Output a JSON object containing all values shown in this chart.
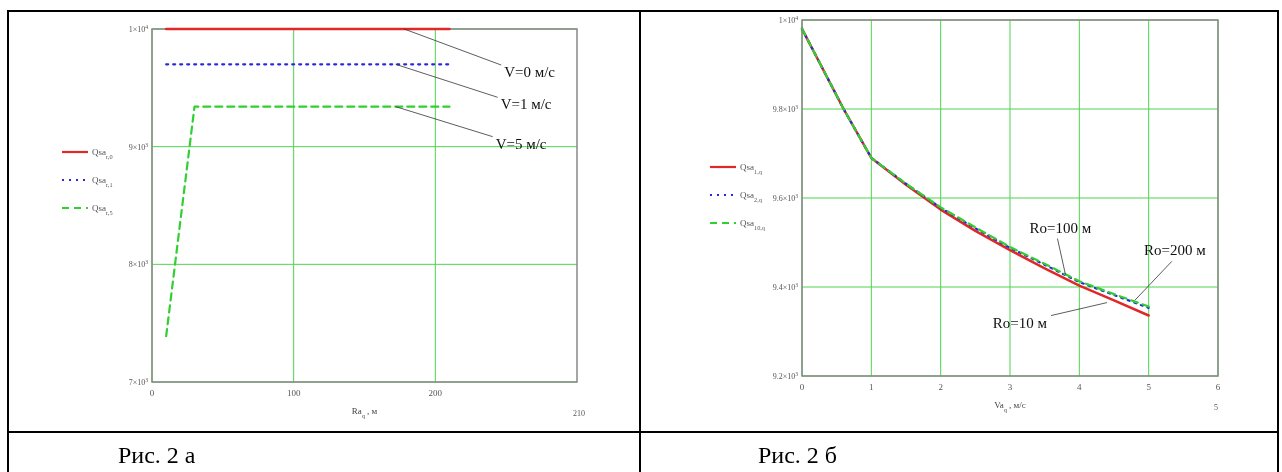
{
  "chart_data": [
    {
      "type": "line",
      "xlabel": "Ra$_{q}$ , м",
      "xlim": [
        0,
        300
      ],
      "xticks": [
        0,
        100,
        200
      ],
      "ylim": [
        7000,
        10000
      ],
      "yticks": [
        {
          "value": 7000,
          "label": "7×10$^{3}$"
        },
        {
          "value": 8000,
          "label": "8×10$^{3}$"
        },
        {
          "value": 9000,
          "label": "9×10$^{3}$"
        },
        {
          "value": 10000,
          "label": "1×10$^{4}$"
        }
      ],
      "grid": true,
      "legend": "left",
      "series": [
        {
          "name": "Qsa$_{r,0}$",
          "color": "#e02828",
          "line_style": "solid",
          "x": [
            10,
            210
          ],
          "values": [
            10000,
            10000
          ]
        },
        {
          "name": "Qsa$_{r,1}$",
          "color": "#2828e0",
          "line_style": "dotted",
          "x": [
            10,
            210
          ],
          "values": [
            9700,
            9700
          ]
        },
        {
          "name": "Qsa$_{r,5}$",
          "color": "#30d030",
          "line_style": "dashed",
          "x": [
            10,
            30,
            210
          ],
          "values": [
            7390,
            9340,
            9340
          ]
        }
      ],
      "annotations": [
        {
          "text": "V=0 м/с",
          "x": 178,
          "y": 10000
        },
        {
          "text": "V=1 м/с",
          "x": 172,
          "y": 9700
        },
        {
          "text": "V=5 м/с",
          "x": 172,
          "y": 9340
        },
        "210",
        "Рис. 2 а"
      ]
    },
    {
      "type": "line",
      "xlabel": "Va$_{q}$ , м/с",
      "xlim": [
        0,
        6
      ],
      "xticks": [
        0,
        1,
        2,
        3,
        4,
        5,
        6
      ],
      "ylim": [
        9200,
        10000
      ],
      "yticks": [
        {
          "value": 9200,
          "label": "9.2×10$^{3}$"
        },
        {
          "value": 9400,
          "label": "9.4×10$^{3}$"
        },
        {
          "value": 9600,
          "label": "9.6×10$^{3}$"
        },
        {
          "value": 9800,
          "label": "9.8×10$^{3}$"
        },
        {
          "value": 10000,
          "label": "1×10$^{4}$"
        }
      ],
      "grid": true,
      "legend": "left",
      "series": [
        {
          "name": "Qsa$_{1,q}$",
          "color": "#e02828",
          "line_style": "solid",
          "x": [
            0,
            0.6,
            1,
            1.5,
            2,
            2.5,
            3,
            3.5,
            4,
            4.5,
            5
          ],
          "values": [
            9980,
            9800,
            9690,
            9630,
            9574,
            9526,
            9483,
            9442,
            9403,
            9370,
            9336
          ]
        },
        {
          "name": "Qsa$_{2,q}$",
          "color": "#2828e0",
          "line_style": "dotted",
          "x": [
            0,
            0.6,
            1,
            1.5,
            2,
            2.5,
            3,
            3.5,
            4,
            4.5,
            5
          ],
          "values": [
            9980,
            9800,
            9690,
            9632,
            9578,
            9532,
            9488,
            9450,
            9411,
            9382,
            9353
          ]
        },
        {
          "name": "Qsa$_{10,q}$",
          "color": "#30d030",
          "line_style": "dashed",
          "x": [
            0,
            0.6,
            1,
            1.5,
            2,
            2.5,
            3,
            3.5,
            4,
            4.5,
            5
          ],
          "values": [
            9980,
            9800,
            9690,
            9632,
            9579,
            9534,
            9490,
            9452,
            9413,
            9384,
            9356
          ]
        }
      ],
      "annotations": [
        {
          "text": "Ro=100 м",
          "x": 3.8,
          "y": 9428
        },
        {
          "text": "Ro=200 м",
          "x": 4.8,
          "y": 9370
        },
        {
          "text": "Ro=10 м",
          "x": 4.4,
          "y": 9365
        },
        "5",
        "Рис. 2 б"
      ]
    }
  ]
}
